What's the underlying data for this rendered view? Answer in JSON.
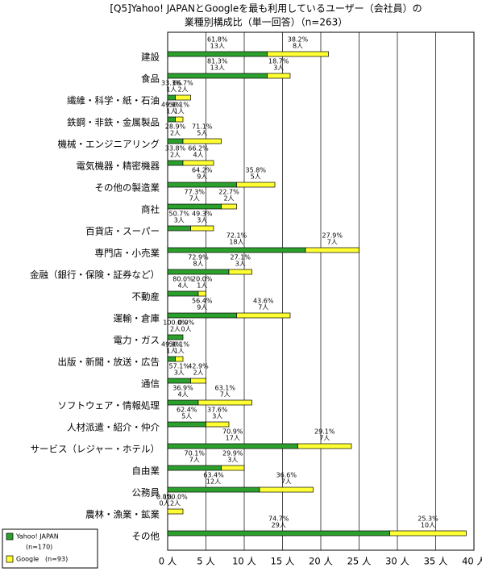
{
  "chart_data": {
    "type": "stacked-barh",
    "title": [
      "[Q5]Yahoo! JAPANとGoogleを最も利用しているユーザー（会社員）の",
      "業種別構成比（単一回答）（n=263）"
    ],
    "categories": [
      "建設",
      "食品",
      "繊維・科学・紙・石油",
      "鉄鋼・非鉄・金属製品",
      "機械・エンジニアリング",
      "電気機器・精密機器",
      "その他の製造業",
      "商社",
      "百貨店・スーパー",
      "専門店・小売業",
      "金融（銀行・保険・証券など）",
      "不動産",
      "運輸・倉庫",
      "電力・ガス",
      "出版・新聞・放送・広告",
      "通信",
      "ソフトウェア・情報処理",
      "人材派遣・紹介・仲介",
      "サービス（レジャー・ホテル）",
      "自由業",
      "公務員",
      "農林・漁業・鉱業",
      "その他"
    ],
    "series": [
      {
        "name": "Yahoo! JAPAN",
        "note": "(n=170)",
        "color": "#2ca02c",
        "values": [
          13,
          13,
          1,
          1,
          2,
          2,
          9,
          7,
          3,
          18,
          8,
          4,
          9,
          2,
          1,
          3,
          4,
          5,
          17,
          7,
          12,
          0,
          29
        ],
        "value_labels": [
          "13人",
          "13人",
          "1人",
          "1人",
          "2人",
          "2人",
          "9人",
          "7人",
          "3人",
          "18人",
          "8人",
          "4人",
          "9人",
          "2人",
          "1人",
          "3人",
          "4人",
          "5人",
          "17人",
          "7人",
          "12人",
          "0人",
          "29人"
        ],
        "share_labels": [
          "61.8%",
          "81.3%",
          "33.3%",
          "49.9%",
          "28.9%",
          "33.8%",
          "64.2%",
          "77.3%",
          "50.7%",
          "72.1%",
          "72.9%",
          "80.0%",
          "56.4%",
          "100.0%",
          "49.9%",
          "57.1%",
          "36.9%",
          "62.4%",
          "70.9%",
          "70.1%",
          "63.4%",
          "0.0%",
          "74.7%"
        ]
      },
      {
        "name": "Google",
        "note": "(n=93)",
        "color": "#ffff33",
        "values": [
          8,
          3,
          2,
          1,
          5,
          4,
          5,
          2,
          3,
          7,
          3,
          1,
          7,
          0,
          1,
          2,
          7,
          3,
          7,
          3,
          7,
          2,
          10
        ],
        "value_labels": [
          "8人",
          "3人",
          "2人",
          "1人",
          "5人",
          "4人",
          "5人",
          "2人",
          "3人",
          "7人",
          "3人",
          "1人",
          "7人",
          "0人",
          "1人",
          "2人",
          "7人",
          "3人",
          "7人",
          "3人",
          "7人",
          "2人",
          "10人"
        ],
        "share_labels": [
          "38.2%",
          "18.7%",
          "66.7%",
          "50.1%",
          "71.1%",
          "66.2%",
          "35.8%",
          "22.7%",
          "49.3%",
          "27.9%",
          "27.1%",
          "20.0%",
          "43.6%",
          "0.0%",
          "50.1%",
          "42.9%",
          "63.1%",
          "37.6%",
          "29.1%",
          "29.9%",
          "36.6%",
          "100.0%",
          "25.3%"
        ]
      }
    ],
    "xlim": [
      0,
      40
    ],
    "xticks": [
      {
        "value": 0,
        "label": "0 人"
      },
      {
        "value": 5,
        "label": "5 人"
      },
      {
        "value": 10,
        "label": "10 人"
      },
      {
        "value": 15,
        "label": "15 人"
      },
      {
        "value": 20,
        "label": "20 人"
      },
      {
        "value": 25,
        "label": "25 人"
      },
      {
        "value": 30,
        "label": "30 人"
      },
      {
        "value": 35,
        "label": "35 人"
      },
      {
        "value": 40,
        "label": "40 人"
      }
    ],
    "grid": true
  }
}
